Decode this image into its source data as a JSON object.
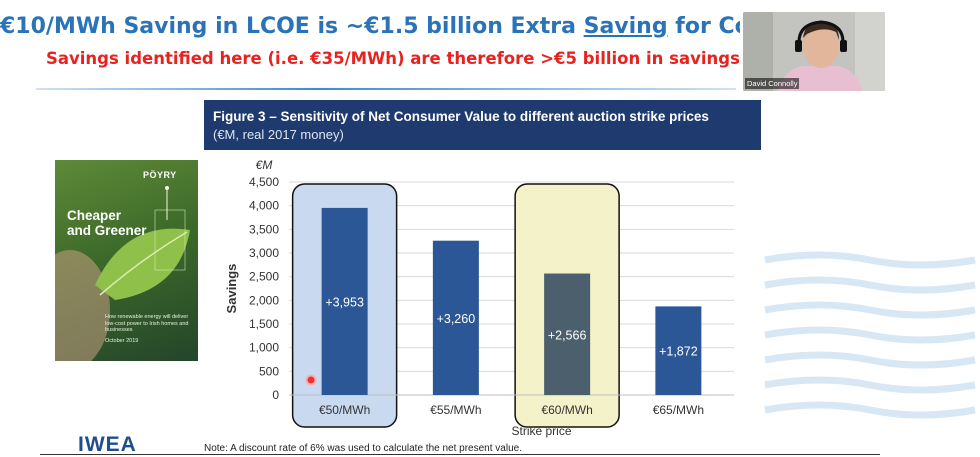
{
  "slide": {
    "title_pre": "€10/MWh Saving in LCOE is ~€1.5 billion Extra ",
    "title_underlined": "Saving",
    "title_post": " for Co",
    "subtitle": "Savings identified here (i.e. €35/MWh) are therefore >€5 billion in savings for Ir",
    "note": "Note: A discount rate of 6% was used to calculate the net present value.",
    "logo_text": "IWEA"
  },
  "figure": {
    "title": "Figure 3 – Sensitivity of Net Consumer Value to different auction strike prices",
    "subtitle": "(€M, real 2017 money)"
  },
  "video": {
    "participant_name": "David Connolly"
  },
  "report_cover": {
    "brand": "PÖYRY",
    "title": "Cheaper\nand Greener",
    "blurb": "How renewable energy will deliver low-cost power to Irish homes and businesses",
    "date": "October 2019"
  },
  "colors": {
    "title_blue": "#2a73b8",
    "subtitle_red": "#e8221f",
    "header_navy": "#1e3a6e",
    "bar_blue": "#2b5797",
    "bar_slate": "#4c5f6d",
    "highlight_blue": "#c9daf0",
    "highlight_yellow": "#f3f2c9"
  },
  "chart_data": {
    "type": "bar",
    "categories": [
      "€50/MWh",
      "€55/MWh",
      "€60/MWh",
      "€65/MWh"
    ],
    "values": [
      3953,
      3260,
      2566,
      1872
    ],
    "data_labels": [
      "+3,953",
      "+3,260",
      "+2,566",
      "+1,872"
    ],
    "highlighted": [
      true,
      false,
      true,
      false
    ],
    "highlight_colors": [
      "blue",
      "",
      "yellow",
      ""
    ],
    "unit_label": "€M",
    "xlabel": "Strike price",
    "ylabel": "Savings",
    "ylim": [
      0,
      4500
    ],
    "yticks": [
      0,
      500,
      1000,
      1500,
      2000,
      2500,
      3000,
      3500,
      4000,
      4500
    ],
    "ytick_labels": [
      "0",
      "500",
      "1,000",
      "1,500",
      "2,000",
      "2,500",
      "3,000",
      "3,500",
      "4,000",
      "4,500"
    ],
    "grid": true
  }
}
